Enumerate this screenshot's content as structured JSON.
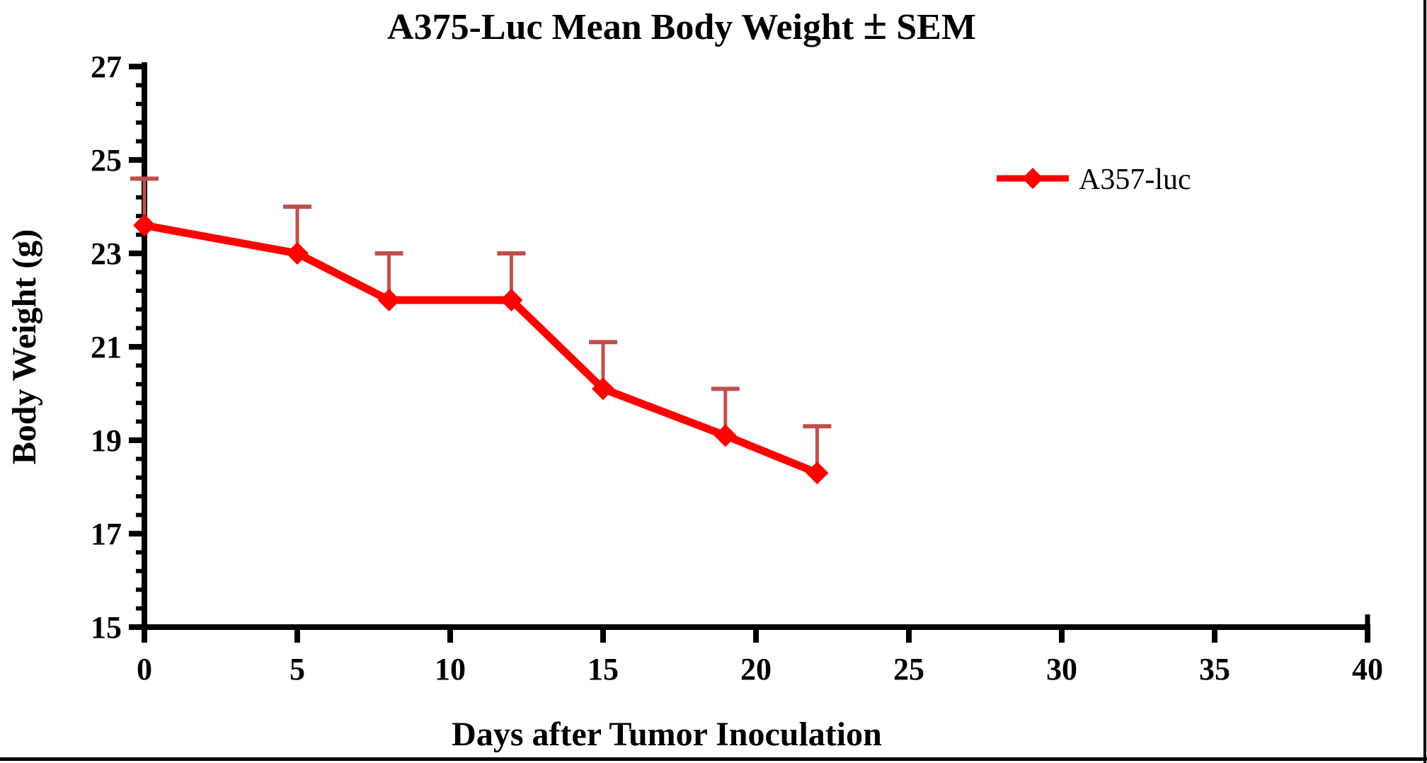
{
  "page": {
    "background_color": "#ffffff",
    "frame_color": "#000000"
  },
  "chart_data": {
    "type": "line",
    "title": "A375-Luc Mean Body Weight ± SEM",
    "xlabel": "Days after Tumor Inoculation",
    "ylabel": "Body Weight (g)",
    "xlim": [
      0,
      40
    ],
    "ylim": [
      15,
      27
    ],
    "x_major_ticks": [
      0,
      5,
      10,
      15,
      20,
      25,
      30,
      35,
      40
    ],
    "y_major_ticks": [
      15,
      17,
      19,
      21,
      23,
      25,
      27
    ],
    "y_minor_tick_step": 0.4,
    "grid": false,
    "error_bars": "upper SEM only, with caps",
    "legend_position": "upper-right inside plot",
    "axis_color": "#000000",
    "series": [
      {
        "name": "A357-luc",
        "marker": "diamond",
        "line_color": "#ff0000",
        "error_bar_color": "#c0504d",
        "x": [
          0,
          5,
          8,
          12,
          15,
          19,
          22
        ],
        "y": [
          23.6,
          23.0,
          22.0,
          22.0,
          20.1,
          19.1,
          18.3
        ],
        "sem_upper": [
          1.0,
          1.0,
          1.0,
          1.0,
          1.0,
          1.0,
          1.0
        ]
      }
    ]
  }
}
